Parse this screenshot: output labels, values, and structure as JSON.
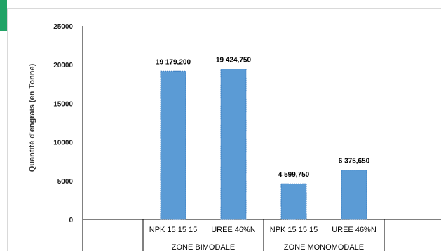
{
  "chart_data": {
    "type": "bar",
    "ylabel": "Quantité d'engrais (en Tonne)",
    "ylim": [
      0,
      25000
    ],
    "yticks": [
      "25000",
      "20000",
      "15000",
      "10000",
      "5000",
      "0"
    ],
    "grid": false,
    "bar_color": "#5b9bd5",
    "bars": [
      {
        "group": "",
        "category": "",
        "value": null,
        "label": ""
      },
      {
        "group": "ZONE BIMODALE",
        "category": "NPK 15 15 15",
        "value": 19179.2,
        "label": "19 179,200"
      },
      {
        "group": "ZONE BIMODALE",
        "category": "UREE 46%N",
        "value": 19424.75,
        "label": "19 424,750"
      },
      {
        "group": "ZONE MONOMODALE",
        "category": "NPK 15 15 15",
        "value": 4599.75,
        "label": "4 599,750"
      },
      {
        "group": "ZONE MONOMODALE",
        "category": "UREE 46%N",
        "value": 6375.65,
        "label": "6 375,650"
      }
    ],
    "groups": [
      "ZONE BIMODALE",
      "ZONE MONOMODALE"
    ]
  }
}
